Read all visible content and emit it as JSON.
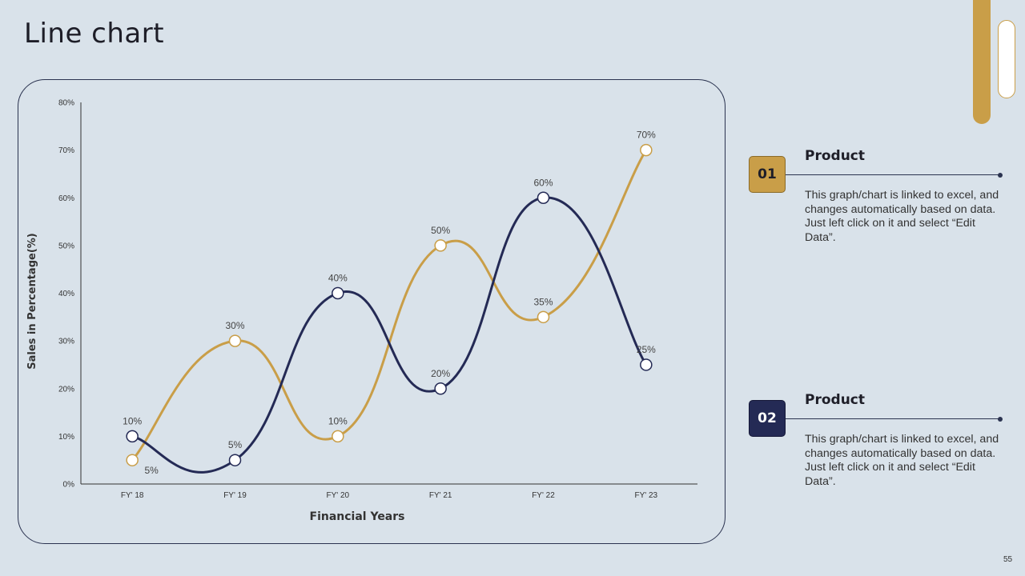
{
  "page": {
    "title": "Line chart",
    "page_number": "55"
  },
  "legend": [
    {
      "number": "01",
      "title": "Product",
      "description": "This graph/chart is linked to excel, and changes automatically based on data. Just left click on it and select “Edit Data”.",
      "color": "#c99e48"
    },
    {
      "number": "02",
      "title": "Product",
      "description": "This graph/chart is linked to excel, and changes automatically based on data. Just left click on it and select “Edit Data”.",
      "color": "#242a55"
    }
  ],
  "chart_data": {
    "type": "line",
    "title": "",
    "xlabel": "Financial Years",
    "ylabel": "Sales in Percentage(%)",
    "categories": [
      "FY' 18",
      "FY' 19",
      "FY' 20",
      "FY' 21",
      "FY' 22",
      "FY' 23"
    ],
    "ylim": [
      0,
      80
    ],
    "yticks": [
      "0%",
      "10%",
      "20%",
      "30%",
      "40%",
      "50%",
      "60%",
      "70%",
      "80%"
    ],
    "grid": false,
    "smooth": true,
    "series": [
      {
        "values": [
          5,
          30,
          10,
          50,
          35,
          70
        ],
        "labels": [
          "5%",
          "30%",
          "10%",
          "50%",
          "35%",
          "70%"
        ],
        "color": "#c99e48"
      },
      {
        "values": [
          10,
          5,
          40,
          20,
          60,
          25
        ],
        "labels": [
          "10%",
          "5%",
          "40%",
          "20%",
          "60%",
          "25%"
        ],
        "color": "#242a55"
      }
    ]
  }
}
